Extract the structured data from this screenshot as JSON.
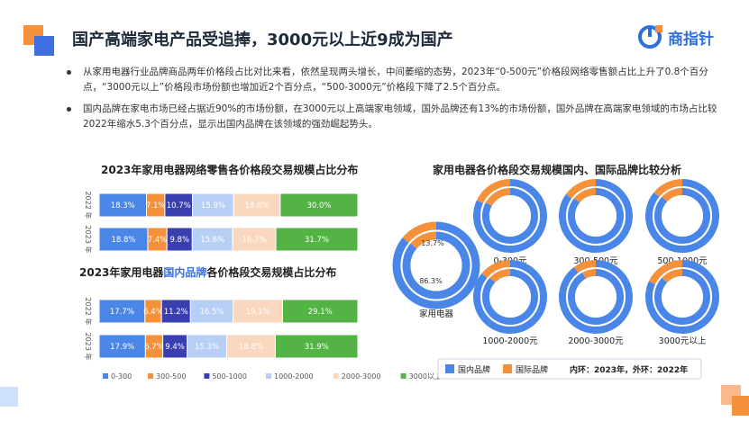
{
  "title": "国产高端家电产品受追捧，3000元以上近9成为国产",
  "logo": {
    "text": "商指针"
  },
  "bullets": [
    "从家用电器行业品牌商品两年价格段占比对比来看，依然呈现两头增长，中间萎缩的态势，2023年“0-500元”价格段网络零售额占比上升了0.8个百分点，“3000元以上”价格段市场份额也增加近2个百分点，“500-3000元”价格段下降了2.5个百分点。",
    "国内品牌在家电市场已经占据近90%的市场份额，在3000元以上高端家电领域，国外品牌还有13%的市场份额，国外品牌在高端家电领域的市场占比较2022年缩水5.3个百分点，显示出国内品牌在该领域的强劲崛起势头。"
  ],
  "colors": {
    "seg": [
      "#4a86e8",
      "#f4913a",
      "#3a3fb0",
      "#b8cff5",
      "#f9d8bf",
      "#53b344"
    ],
    "domestic": "#4a86e8",
    "foreign": "#f4913a"
  },
  "chart_data": [
    {
      "type": "bar",
      "stacked": "horizontal-100",
      "title": "2023年家用电器网络零售各价格段交易规模占比分布",
      "categories": [
        "2022 年",
        "2023 年"
      ],
      "series": [
        {
          "name": "0-300",
          "values": [
            18.3,
            18.8
          ]
        },
        {
          "name": "300-500",
          "values": [
            7.1,
            7.4
          ]
        },
        {
          "name": "500-1000",
          "values": [
            10.7,
            9.8
          ]
        },
        {
          "name": "1000-2000",
          "values": [
            15.9,
            15.6
          ]
        },
        {
          "name": "2000-3000",
          "values": [
            18.0,
            16.7
          ]
        },
        {
          "name": "3000以上",
          "values": [
            30.0,
            31.7
          ]
        }
      ],
      "labels": [
        [
          "18.3%",
          "7.1%",
          "10.7%",
          "15.9%",
          "18.0%",
          "30.0%"
        ],
        [
          "18.8%",
          "7.4%",
          "9.8%",
          "15.6%",
          "16.7%",
          "31.7%"
        ]
      ]
    },
    {
      "type": "bar",
      "stacked": "horizontal-100",
      "title_parts": [
        "2023年家用电器",
        "国内品牌",
        "各价格段交易规模占比分布"
      ],
      "categories": [
        "2022 年",
        "2023 年"
      ],
      "series": [
        {
          "name": "0-300",
          "values": [
            17.7,
            17.9
          ]
        },
        {
          "name": "300-500",
          "values": [
            6.4,
            6.7
          ]
        },
        {
          "name": "500-1000",
          "values": [
            11.2,
            9.4
          ]
        },
        {
          "name": "1000-2000",
          "values": [
            16.5,
            15.3
          ]
        },
        {
          "name": "2000-3000",
          "values": [
            19.1,
            18.8
          ]
        },
        {
          "name": "3000以上",
          "values": [
            29.1,
            31.9
          ]
        }
      ],
      "labels": [
        [
          "17.7%",
          "6.4%",
          "11.2%",
          "16.5%",
          "19.1%",
          "29.1%"
        ],
        [
          "17.9%",
          "6.7%",
          "9.4%",
          "15.3%",
          "18.8%",
          "31.9%"
        ]
      ],
      "legend": [
        "0-300",
        "300-500",
        "500-1000",
        "1000-2000",
        "2000-3000",
        "3000以上"
      ]
    },
    {
      "type": "pie",
      "title": "家用电器各价格段交易规模国内、国际品牌比较分析",
      "donuts": [
        {
          "label": "家用电器",
          "inner": [
            86.3,
            13.7
          ],
          "outer": [
            86.0,
            14.0
          ],
          "labels": [
            "86.3%",
            "13.7%"
          ]
        },
        {
          "label": "0-300元",
          "inner": [
            83.0,
            17.0
          ],
          "outer": [
            82.0,
            18.0
          ]
        },
        {
          "label": "300-500元",
          "inner": [
            86.0,
            14.0
          ],
          "outer": [
            85.0,
            15.0
          ]
        },
        {
          "label": "500-1000元",
          "inner": [
            87.0,
            13.0
          ],
          "outer": [
            86.0,
            14.0
          ]
        },
        {
          "label": "1000-2000元",
          "inner": [
            87.0,
            13.0
          ],
          "outer": [
            86.0,
            14.0
          ]
        },
        {
          "label": "2000-3000元",
          "inner": [
            92.0,
            8.0
          ],
          "outer": [
            90.0,
            10.0
          ]
        },
        {
          "label": "3000元以上",
          "inner": [
            87.0,
            13.0
          ],
          "outer": [
            82.0,
            18.0
          ]
        }
      ],
      "series": [
        "国内品牌",
        "国际品牌"
      ],
      "note": "内环：2023年，外环：2022年"
    }
  ]
}
